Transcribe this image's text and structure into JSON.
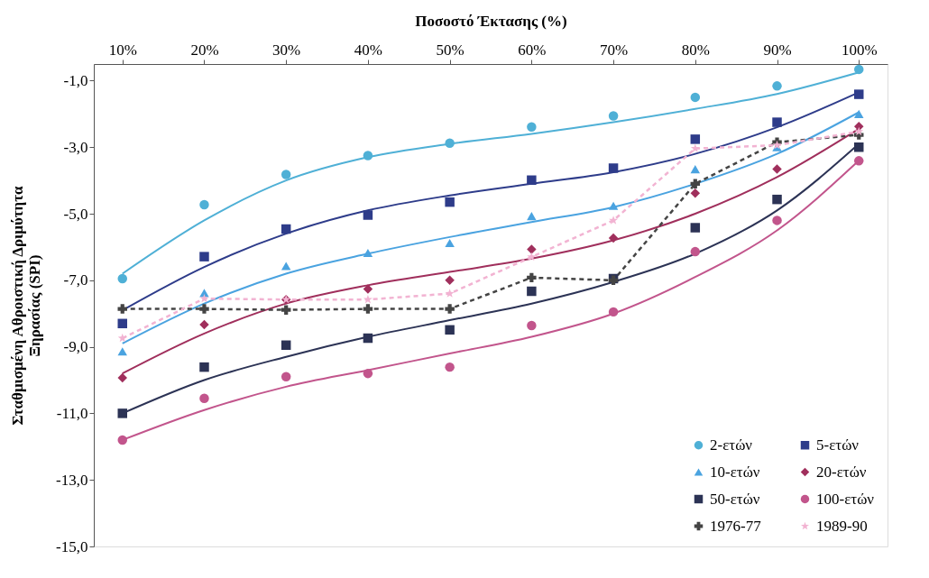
{
  "chart_data": {
    "type": "scatter",
    "xlabel": "Ποσοστό Έκτασης (%)",
    "ylabel": "Σταθμισμένη Αθροιστική Δριμύτητα\nΞηρασίας (SPI)",
    "categories": [
      "10%",
      "20%",
      "30%",
      "40%",
      "50%",
      "60%",
      "70%",
      "80%",
      "90%",
      "100%"
    ],
    "ylim": [
      -15,
      -0.5
    ],
    "yticks": [
      {
        "value": -1,
        "label": "-1,0"
      },
      {
        "value": -3,
        "label": "-3,0"
      },
      {
        "value": -5,
        "label": "-5,0"
      },
      {
        "value": -7,
        "label": "-7,0"
      },
      {
        "value": -9,
        "label": "-9,0"
      },
      {
        "value": -11,
        "label": "-11,0"
      },
      {
        "value": -13,
        "label": "-13,0"
      },
      {
        "value": -15,
        "label": "-15,0"
      }
    ],
    "grid": false,
    "legend": "bottom right",
    "series": [
      {
        "name": "2-ετών",
        "marker": "circle",
        "color": "#4fb0d6",
        "values": [
          -6.95,
          -4.73,
          -3.82,
          -3.25,
          -2.88,
          -2.39,
          -2.06,
          -1.5,
          -1.16,
          -0.66
        ]
      },
      {
        "name": "5-ετών",
        "marker": "square",
        "color": "#2e3c8a",
        "values": [
          -8.3,
          -6.29,
          -5.46,
          -5.04,
          -4.65,
          -3.99,
          -3.63,
          -2.76,
          -2.25,
          -1.41
        ]
      },
      {
        "name": "10-ετών",
        "marker": "triangle",
        "color": "#4aa3e0",
        "values": [
          -9.14,
          -7.38,
          -6.57,
          -6.18,
          -5.88,
          -5.07,
          -4.76,
          -3.66,
          -3.0,
          -2.0
        ]
      },
      {
        "name": "20-ετών",
        "marker": "diamond",
        "color": "#a02f5c",
        "values": [
          -9.93,
          -8.33,
          -7.58,
          -7.26,
          -7.0,
          -6.07,
          -5.73,
          -4.38,
          -3.66,
          -2.38
        ]
      },
      {
        "name": "50-ετών",
        "marker": "square",
        "color": "#2c3355",
        "values": [
          -11.0,
          -9.61,
          -8.95,
          -8.74,
          -8.49,
          -7.33,
          -6.95,
          -5.42,
          -4.57,
          -3.0
        ]
      },
      {
        "name": "100-ετών",
        "marker": "circle",
        "color": "#c2558c",
        "values": [
          -11.8,
          -10.55,
          -9.9,
          -9.8,
          -9.61,
          -8.36,
          -7.95,
          -6.14,
          -5.2,
          -3.41
        ]
      },
      {
        "name": "1976-77",
        "type": "line",
        "marker": "cross",
        "line_style": "dashed",
        "color": "#444444",
        "values": [
          -7.86,
          -7.86,
          -7.89,
          -7.86,
          -7.86,
          -6.92,
          -7.0,
          -4.1,
          -2.85,
          -2.63
        ]
      },
      {
        "name": "1989-90",
        "type": "line",
        "marker": "star",
        "line_style": "dashed",
        "color": "#f2b3d2",
        "values": [
          -8.74,
          -7.55,
          -7.58,
          -7.58,
          -7.4,
          -6.3,
          -5.2,
          -3.04,
          -2.94,
          -2.53
        ]
      },
      {
        "type": "line",
        "marker": "none",
        "line_style": "solid",
        "color": "#4fb0d6",
        "values": [
          -6.8,
          -5.2,
          -4.0,
          -3.3,
          -2.9,
          -2.6,
          -2.25,
          -1.85,
          -1.4,
          -0.75
        ]
      },
      {
        "type": "line",
        "marker": "none",
        "line_style": "solid",
        "color": "#2e3c8a",
        "values": [
          -7.9,
          -6.6,
          -5.6,
          -4.9,
          -4.45,
          -4.1,
          -3.75,
          -3.2,
          -2.4,
          -1.35
        ]
      },
      {
        "type": "line",
        "marker": "none",
        "line_style": "solid",
        "color": "#4aa3e0",
        "values": [
          -8.9,
          -7.7,
          -6.8,
          -6.2,
          -5.7,
          -5.25,
          -4.8,
          -4.1,
          -3.2,
          -1.95
        ]
      },
      {
        "type": "line",
        "marker": "none",
        "line_style": "solid",
        "color": "#a02f5c",
        "values": [
          -9.8,
          -8.6,
          -7.7,
          -7.15,
          -6.75,
          -6.35,
          -5.8,
          -5.0,
          -3.9,
          -2.45
        ]
      },
      {
        "type": "line",
        "marker": "none",
        "line_style": "solid",
        "color": "#2c3355",
        "values": [
          -11.0,
          -10.0,
          -9.3,
          -8.7,
          -8.2,
          -7.7,
          -7.05,
          -6.2,
          -4.9,
          -2.9
        ]
      },
      {
        "type": "line",
        "marker": "none",
        "line_style": "solid",
        "color": "#c2558c",
        "values": [
          -11.8,
          -10.9,
          -10.2,
          -9.7,
          -9.2,
          -8.7,
          -8.0,
          -6.9,
          -5.5,
          -3.4
        ]
      }
    ]
  }
}
